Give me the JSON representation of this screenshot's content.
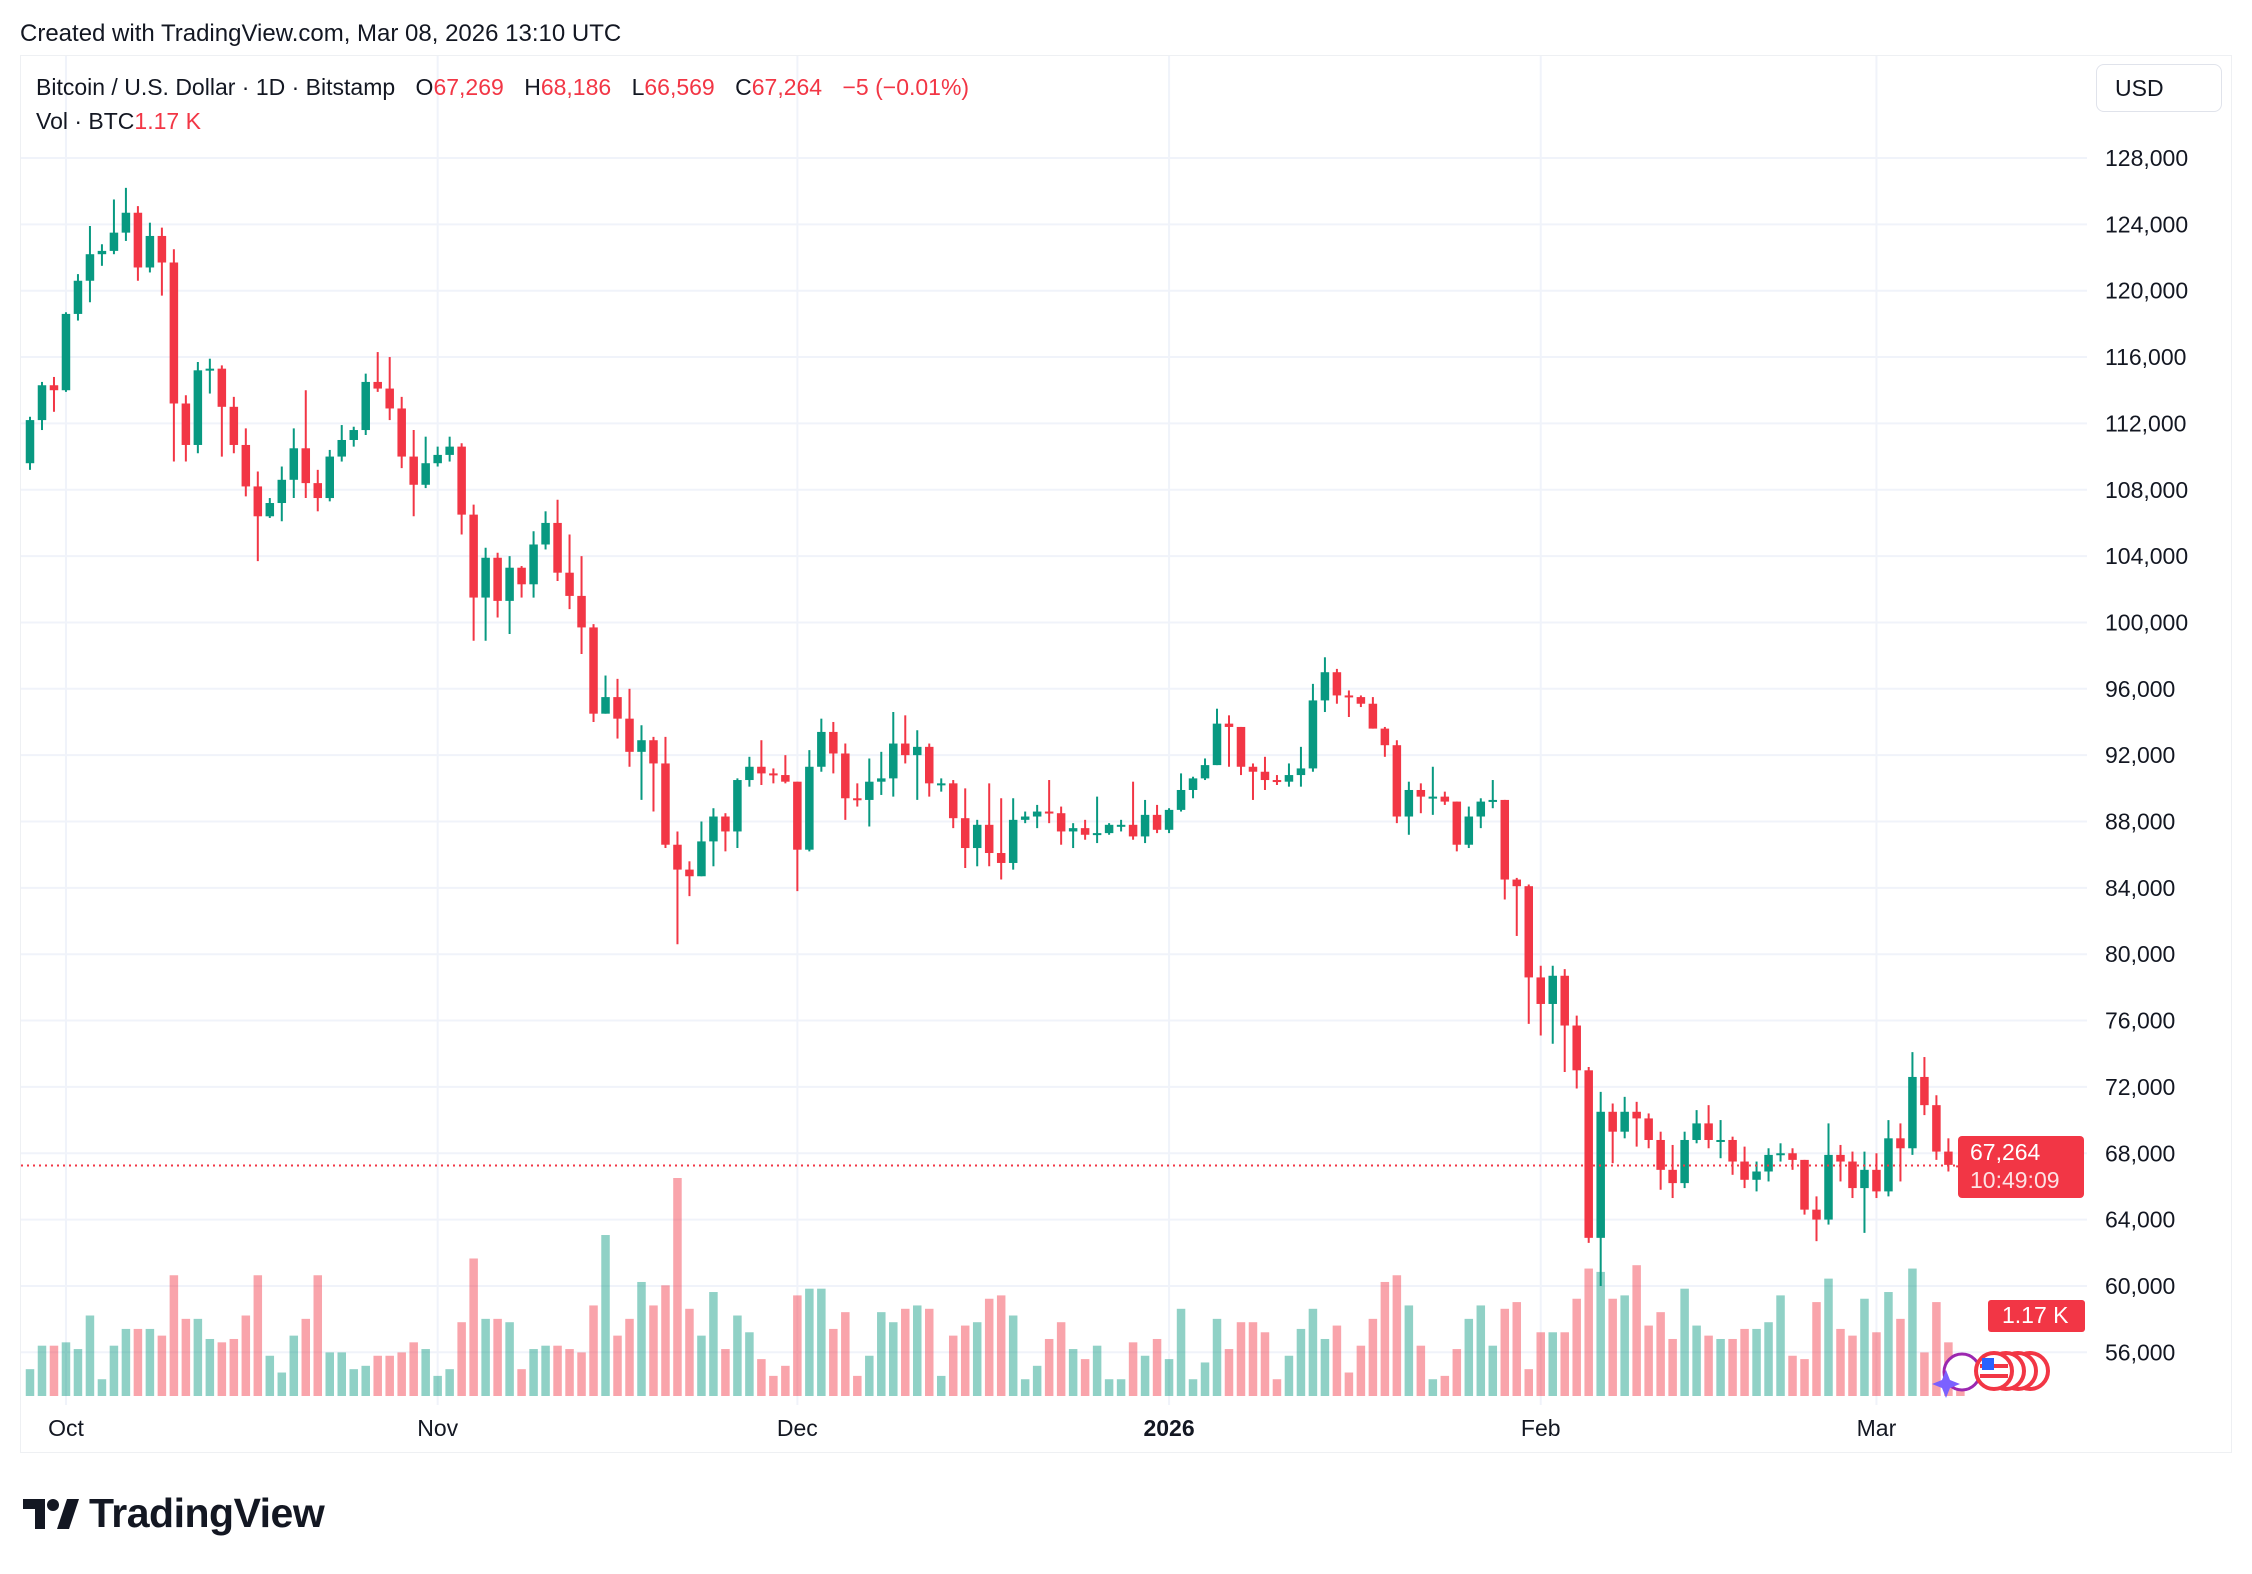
{
  "credit": "Created with TradingView.com, Mar 08, 2026 13:10 UTC",
  "legend": {
    "symbol": "Bitcoin / U.S. Dollar · 1D · Bitstamp",
    "o_label": "O",
    "o": "67,269",
    "h_label": "H",
    "h": "68,186",
    "l_label": "L",
    "l": "66,569",
    "c_label": "C",
    "c": "67,264",
    "change": "−5 (−0.01%)",
    "vol_label": "Vol · BTC",
    "vol": "1.17 K"
  },
  "currency_button": "USD",
  "price_badge": {
    "price": "67,264",
    "countdown": "10:49:09"
  },
  "volume_badge": "1.17 K",
  "logo_text": "TradingView",
  "colors": {
    "up": "#089981",
    "down": "#f23645",
    "grid": "#f0f3fa"
  },
  "icons": [
    "tradingview-logo-icon",
    "sparkle-event-icon",
    "us-flag-event-icon"
  ],
  "chart_data": {
    "type": "candlestick",
    "interval": "1D",
    "x_start": "2025-09-28",
    "ylim": [
      54000,
      132000
    ],
    "grid": true,
    "y_ticks": [
      56000,
      60000,
      64000,
      68000,
      72000,
      76000,
      80000,
      84000,
      88000,
      92000,
      96000,
      100000,
      104000,
      108000,
      112000,
      116000,
      120000,
      124000,
      128000
    ],
    "y_tick_labels": [
      "56,000",
      "60,000",
      "64,000",
      "68,000",
      "72,000",
      "76,000",
      "80,000",
      "84,000",
      "88,000",
      "92,000",
      "96,000",
      "100,000",
      "104,000",
      "108,000",
      "112,000",
      "116,000",
      "120,000",
      "124,000",
      "128,000"
    ],
    "x_ticks": [
      {
        "label": "Oct",
        "date": "2025-10-01"
      },
      {
        "label": "Nov",
        "date": "2025-11-01"
      },
      {
        "label": "Dec",
        "date": "2025-12-01"
      },
      {
        "label": "2026",
        "date": "2026-01-01",
        "bold": true
      },
      {
        "label": "Feb",
        "date": "2026-02-01"
      },
      {
        "label": "Mar",
        "date": "2026-03-01"
      }
    ],
    "ohlc": [
      [
        109600,
        112400,
        109200,
        112200
      ],
      [
        112200,
        114500,
        111600,
        114300
      ],
      [
        114300,
        114800,
        112700,
        114000
      ],
      [
        114000,
        118700,
        113900,
        118600
      ],
      [
        118600,
        121000,
        118200,
        120600
      ],
      [
        120600,
        123900,
        119300,
        122200
      ],
      [
        122200,
        122800,
        121500,
        122400
      ],
      [
        122400,
        125500,
        122200,
        123500
      ],
      [
        123500,
        126200,
        123000,
        124700
      ],
      [
        124700,
        125100,
        120600,
        121400
      ],
      [
        121400,
        124100,
        121100,
        123300
      ],
      [
        123300,
        123800,
        119700,
        121700
      ],
      [
        121700,
        122500,
        109700,
        113200
      ],
      [
        113200,
        113700,
        109700,
        110700
      ],
      [
        110700,
        115700,
        110200,
        115200
      ],
      [
        115200,
        115900,
        113800,
        115300
      ],
      [
        115300,
        115500,
        110000,
        113000
      ],
      [
        113000,
        113600,
        110200,
        110700
      ],
      [
        110700,
        111700,
        107600,
        108200
      ],
      [
        108200,
        109100,
        103700,
        106400
      ],
      [
        106400,
        107500,
        106300,
        107200
      ],
      [
        107200,
        109400,
        106100,
        108600
      ],
      [
        108600,
        111700,
        107500,
        110500
      ],
      [
        110500,
        114000,
        107500,
        108400
      ],
      [
        108400,
        109200,
        106700,
        107500
      ],
      [
        107500,
        110400,
        107300,
        110000
      ],
      [
        110000,
        111900,
        109700,
        111000
      ],
      [
        111000,
        111800,
        110600,
        111600
      ],
      [
        111600,
        115000,
        111300,
        114500
      ],
      [
        114500,
        116300,
        113900,
        114100
      ],
      [
        114100,
        116000,
        112200,
        112900
      ],
      [
        112900,
        113600,
        109300,
        110000
      ],
      [
        110000,
        111600,
        106400,
        108300
      ],
      [
        108300,
        111200,
        108100,
        109600
      ],
      [
        109600,
        110600,
        109400,
        110100
      ],
      [
        110100,
        111200,
        109700,
        110600
      ],
      [
        110600,
        110800,
        105300,
        106500
      ],
      [
        106500,
        107100,
        98900,
        101500
      ],
      [
        101500,
        104500,
        98900,
        103900
      ],
      [
        103900,
        104200,
        100300,
        101300
      ],
      [
        101300,
        104000,
        99300,
        103300
      ],
      [
        103300,
        103400,
        101500,
        102300
      ],
      [
        102300,
        105500,
        101500,
        104700
      ],
      [
        104700,
        106700,
        104400,
        106000
      ],
      [
        106000,
        107400,
        102500,
        103000
      ],
      [
        103000,
        105300,
        100800,
        101600
      ],
      [
        101600,
        104000,
        98100,
        99700
      ],
      [
        99700,
        99900,
        94000,
        94500
      ],
      [
        94500,
        96800,
        94500,
        95500
      ],
      [
        95500,
        96600,
        93000,
        94200
      ],
      [
        94200,
        96000,
        91300,
        92200
      ],
      [
        92200,
        93800,
        89300,
        92900
      ],
      [
        92900,
        93100,
        88600,
        91500
      ],
      [
        91500,
        93100,
        86400,
        86600
      ],
      [
        86600,
        87400,
        80600,
        85100
      ],
      [
        85100,
        85600,
        83500,
        84700
      ],
      [
        84700,
        88000,
        84700,
        86800
      ],
      [
        86800,
        88800,
        85300,
        88300
      ],
      [
        88300,
        88500,
        86200,
        87400
      ],
      [
        87400,
        90600,
        86400,
        90500
      ],
      [
        90500,
        91900,
        90100,
        91300
      ],
      [
        91300,
        92900,
        90200,
        90900
      ],
      [
        90900,
        91200,
        90300,
        90800
      ],
      [
        90800,
        92000,
        90300,
        90400
      ],
      [
        90400,
        90400,
        83800,
        86300
      ],
      [
        86300,
        92300,
        86200,
        91300
      ],
      [
        91300,
        94200,
        91000,
        93400
      ],
      [
        93400,
        94000,
        90900,
        92100
      ],
      [
        92100,
        92700,
        88100,
        89400
      ],
      [
        89400,
        90300,
        88900,
        89300
      ],
      [
        89300,
        91800,
        87700,
        90400
      ],
      [
        90400,
        92200,
        89600,
        90600
      ],
      [
        90600,
        94600,
        89500,
        92700
      ],
      [
        92700,
        94400,
        91500,
        92000
      ],
      [
        92000,
        93500,
        89300,
        92500
      ],
      [
        92500,
        92700,
        89500,
        90300
      ],
      [
        90300,
        90600,
        89800,
        90300
      ],
      [
        90300,
        90500,
        87600,
        88200
      ],
      [
        88200,
        90000,
        85200,
        86400
      ],
      [
        86400,
        88100,
        85300,
        87800
      ],
      [
        87800,
        90300,
        85300,
        86100
      ],
      [
        86100,
        89400,
        84500,
        85500
      ],
      [
        85500,
        89400,
        85100,
        88100
      ],
      [
        88100,
        88600,
        87900,
        88300
      ],
      [
        88300,
        89000,
        87600,
        88600
      ],
      [
        88600,
        90500,
        87900,
        88500
      ],
      [
        88500,
        88900,
        86600,
        87400
      ],
      [
        87400,
        87900,
        86400,
        87600
      ],
      [
        87600,
        88100,
        86900,
        87200
      ],
      [
        87200,
        89500,
        86700,
        87300
      ],
      [
        87300,
        87900,
        87200,
        87800
      ],
      [
        87800,
        88100,
        87400,
        87800
      ],
      [
        87800,
        90400,
        86900,
        87100
      ],
      [
        87100,
        89300,
        86700,
        88400
      ],
      [
        88400,
        89000,
        87300,
        87500
      ],
      [
        87500,
        88800,
        87300,
        88700
      ],
      [
        88700,
        90900,
        88600,
        89900
      ],
      [
        89900,
        90700,
        89400,
        90600
      ],
      [
        90600,
        91800,
        90500,
        91400
      ],
      [
        91400,
        94800,
        91400,
        93900
      ],
      [
        93900,
        94400,
        91300,
        93700
      ],
      [
        93700,
        93700,
        90800,
        91300
      ],
      [
        91300,
        91500,
        89300,
        91000
      ],
      [
        91000,
        91900,
        89900,
        90500
      ],
      [
        90500,
        90800,
        90200,
        90400
      ],
      [
        90400,
        91500,
        90100,
        90800
      ],
      [
        90800,
        92500,
        90100,
        91200
      ],
      [
        91200,
        96300,
        91000,
        95300
      ],
      [
        95300,
        97900,
        94600,
        97000
      ],
      [
        97000,
        97200,
        95100,
        95600
      ],
      [
        95600,
        95900,
        94300,
        95500
      ],
      [
        95500,
        95600,
        94900,
        95100
      ],
      [
        95100,
        95500,
        93600,
        93600
      ],
      [
        93600,
        93700,
        91900,
        92600
      ],
      [
        92600,
        92900,
        87900,
        88300
      ],
      [
        88300,
        90400,
        87200,
        89900
      ],
      [
        89900,
        90300,
        88500,
        89500
      ],
      [
        89500,
        91300,
        88400,
        89500
      ],
      [
        89500,
        89800,
        89000,
        89200
      ],
      [
        89200,
        89200,
        86200,
        86600
      ],
      [
        86600,
        88900,
        86400,
        88300
      ],
      [
        88300,
        89400,
        87600,
        89200
      ],
      [
        89200,
        90500,
        88800,
        89300
      ],
      [
        89300,
        89300,
        83300,
        84500
      ],
      [
        84500,
        84600,
        81100,
        84100
      ],
      [
        84100,
        84200,
        75800,
        78600
      ],
      [
        78600,
        79300,
        75100,
        77000
      ],
      [
        77000,
        79300,
        74600,
        78700
      ],
      [
        78700,
        79100,
        72900,
        75700
      ],
      [
        75700,
        76300,
        71900,
        73000
      ],
      [
        73000,
        73200,
        62600,
        62900
      ],
      [
        62900,
        71700,
        60000,
        70500
      ],
      [
        70500,
        71000,
        67400,
        69300
      ],
      [
        69300,
        71400,
        68900,
        70500
      ],
      [
        70500,
        71100,
        68400,
        70100
      ],
      [
        70100,
        70400,
        68300,
        68800
      ],
      [
        68800,
        69300,
        65800,
        67000
      ],
      [
        67000,
        68500,
        65300,
        66200
      ],
      [
        66200,
        69300,
        65900,
        68800
      ],
      [
        68800,
        70600,
        68600,
        69800
      ],
      [
        69800,
        70900,
        68300,
        68800
      ],
      [
        68800,
        70000,
        67700,
        68800
      ],
      [
        68800,
        69000,
        66700,
        67500
      ],
      [
        67500,
        68400,
        65900,
        66400
      ],
      [
        66400,
        67500,
        65700,
        66900
      ],
      [
        66900,
        68300,
        66300,
        67900
      ],
      [
        67900,
        68600,
        67500,
        68000
      ],
      [
        68000,
        68300,
        67000,
        67600
      ],
      [
        67600,
        67600,
        64300,
        64600
      ],
      [
        64600,
        65400,
        62700,
        64000
      ],
      [
        64000,
        69800,
        63700,
        67900
      ],
      [
        67900,
        68500,
        66300,
        67500
      ],
      [
        67500,
        68100,
        65300,
        65900
      ],
      [
        65900,
        68100,
        63200,
        67000
      ],
      [
        67000,
        68000,
        65300,
        65700
      ],
      [
        65700,
        70000,
        65400,
        68900
      ],
      [
        68900,
        69800,
        66300,
        68300
      ],
      [
        68300,
        74100,
        67900,
        72600
      ],
      [
        72600,
        73800,
        70300,
        70900
      ],
      [
        70900,
        71500,
        67600,
        68100
      ],
      [
        68100,
        68900,
        66900,
        67300
      ],
      [
        67269,
        68186,
        66569,
        67264
      ]
    ],
    "volume_btc": [
      800,
      1500,
      1500,
      1600,
      1400,
      2400,
      500,
      1500,
      2000,
      2000,
      2000,
      1800,
      3600,
      2300,
      2300,
      1700,
      1600,
      1700,
      2400,
      3600,
      1200,
      700,
      1800,
      2300,
      3600,
      1300,
      1300,
      800,
      900,
      1200,
      1200,
      1300,
      1600,
      1400,
      600,
      800,
      2200,
      4100,
      2300,
      2300,
      2200,
      800,
      1400,
      1500,
      1500,
      1400,
      1300,
      2700,
      4800,
      1800,
      2300,
      3400,
      2700,
      3300,
      6500,
      2600,
      1800,
      3100,
      1400,
      2400,
      1900,
      1100,
      600,
      900,
      3000,
      3200,
      3200,
      2000,
      2500,
      600,
      1200,
      2500,
      2200,
      2600,
      2700,
      2600,
      600,
      1800,
      2100,
      2200,
      2900,
      3000,
      2400,
      500,
      900,
      1700,
      2200,
      1400,
      1100,
      1500,
      500,
      500,
      1600,
      1200,
      1700,
      1100,
      2600,
      500,
      1000,
      2300,
      1400,
      2200,
      2200,
      1900,
      500,
      1200,
      2000,
      2600,
      1700,
      2100,
      700,
      1500,
      2300,
      3400,
      3600,
      2700,
      1500,
      500,
      600,
      1400,
      2300,
      2700,
      1500,
      2600,
      2800,
      800,
      1900,
      1900,
      1900,
      2900,
      3800,
      3700,
      2900,
      3000,
      3900,
      2100,
      2500,
      1700,
      3200,
      2100,
      1800,
      1700,
      1700,
      2000,
      2000,
      2200,
      3000,
      1200,
      1100,
      2800,
      3500,
      2000,
      1800,
      2900,
      1900,
      3100,
      2300,
      3800,
      1300,
      2800,
      1600,
      1170
    ],
    "last_price": 67264
  }
}
